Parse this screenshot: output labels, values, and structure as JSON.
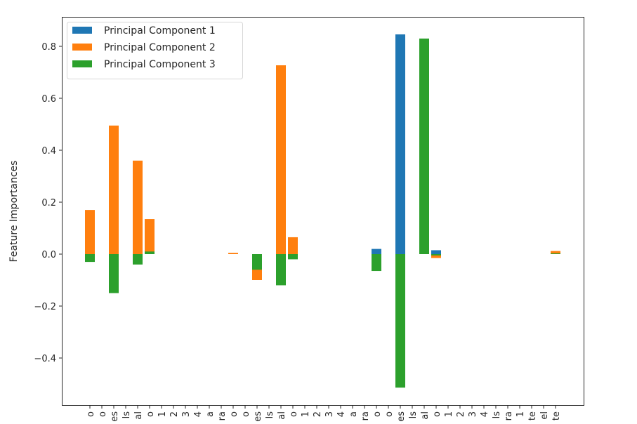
{
  "chart_data": {
    "type": "bar",
    "title": "",
    "xlabel": "",
    "ylabel": "Feature Importances",
    "ylim": [
      -0.58,
      0.91
    ],
    "yticks": [
      -0.4,
      -0.2,
      0.0,
      0.2,
      0.4,
      0.6,
      0.8
    ],
    "ytick_labels": [
      "−0.4",
      "−0.2",
      "0.0",
      "0.2",
      "0.4",
      "0.6",
      "0.8"
    ],
    "grid": false,
    "legend_position": "upper left",
    "bar_mode": "overlay",
    "categories": [
      "o",
      "o",
      "es",
      "ls",
      "al",
      "o",
      "1",
      "2",
      "3",
      "4",
      "a",
      "ra",
      "o",
      "o",
      "es",
      "ls",
      "al",
      "o",
      "1",
      "2",
      "3",
      "4",
      "a",
      "ra",
      "o",
      "o",
      "es",
      "ls",
      "al",
      "o",
      "1",
      "2",
      "3",
      "4",
      "ls",
      "ra",
      "1",
      "te",
      "el",
      "te"
    ],
    "series": [
      {
        "name": "Principal Component 1",
        "color": "#1f77b4",
        "values": [
          0,
          0,
          0,
          0,
          0,
          0,
          0,
          0,
          0,
          0,
          0,
          0,
          0,
          0,
          0,
          0,
          0,
          0,
          0,
          0,
          0,
          0,
          0,
          0,
          0.02,
          0,
          0.846,
          0,
          0,
          0.015,
          0,
          0,
          0,
          0,
          0,
          0,
          0,
          0,
          0,
          0
        ]
      },
      {
        "name": "Principal Component 2",
        "color": "#ff7f0e",
        "values": [
          0.17,
          0,
          0.495,
          0,
          0.36,
          0.135,
          0,
          0,
          0,
          0,
          0,
          0,
          0.005,
          0,
          -0.1,
          0,
          0.727,
          0.065,
          0,
          0,
          0,
          0,
          0,
          0,
          0,
          0,
          0,
          0,
          0,
          -0.015,
          0,
          0,
          0,
          0,
          0,
          0,
          0,
          0,
          0,
          0.012
        ]
      },
      {
        "name": "Principal Component 3",
        "color": "#2ca02c",
        "values": [
          -0.03,
          0,
          -0.15,
          0,
          -0.04,
          0.01,
          0,
          0,
          0,
          0,
          0,
          0,
          0,
          0,
          -0.06,
          0,
          -0.12,
          -0.02,
          0,
          0,
          0,
          0,
          0,
          0,
          -0.065,
          0,
          -0.514,
          0,
          0.83,
          -0.005,
          0,
          0,
          0,
          0,
          0,
          0,
          0,
          0,
          0,
          0.003
        ]
      }
    ]
  }
}
